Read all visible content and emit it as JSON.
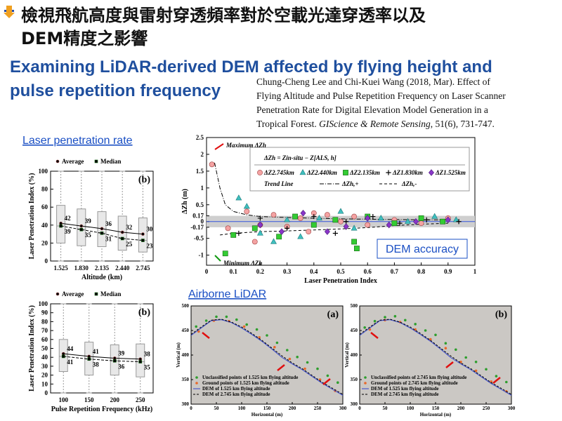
{
  "header": {
    "title_zh": [
      "檢視飛航高度與雷射穿透頻率對於空載光達穿透率以及",
      "DEM精度之影響"
    ],
    "title_en": [
      "Examining LiDAR-derived DEM affected by flying height and",
      "pulse repetition frequency"
    ]
  },
  "citation": {
    "lines": [
      "Chung-Cheng Lee and Chi-Kuei Wang (2018, Mar). Effect of",
      "Flying Altitude  and Pulse Repetition Frequency on Laser Scanner",
      "Penetration Rate for Digital  Elevation  Model Generation  in a"
    ],
    "last_line": [
      "Tropical Forest. ",
      "GIScience & Remote Sensing",
      ", 51(6), 731-747."
    ]
  },
  "labels": {
    "penetration": "Laser penetration rate",
    "accuracy": "DEM accuracy",
    "lidar": "Airborne LiDAR"
  },
  "chart_data": [
    {
      "type": "box",
      "panel": "(b)",
      "xlabel": "Altitude (km)",
      "ylabel": "Laser Penetration Index (%)",
      "categories": [
        "1.525",
        "1.830",
        "2.135",
        "2.440",
        "2.745"
      ],
      "ylim": [
        0,
        100
      ],
      "yticks": [
        0,
        20,
        40,
        60,
        80,
        100
      ],
      "boxes": {
        "min": [
          0,
          0,
          0,
          0,
          0
        ],
        "q1": [
          20,
          17,
          16,
          12,
          10
        ],
        "q3": [
          62,
          58,
          55,
          50,
          48
        ],
        "max": [
          100,
          100,
          100,
          100,
          100
        ]
      },
      "series": [
        {
          "name": "Average",
          "marker": "circle",
          "dashed": false,
          "color": "#000000",
          "values": [
            42,
            39,
            36,
            32,
            30
          ]
        },
        {
          "name": "Median",
          "marker": "square",
          "dashed": true,
          "color": "#000000",
          "values": [
            39,
            35,
            31,
            25,
            23
          ]
        }
      ]
    },
    {
      "type": "box",
      "panel": "(b)",
      "xlabel": "Pulse Repetition Frequency (kHz)",
      "ylabel": "Laser Penetration Index (%)",
      "categories": [
        "100",
        "150",
        "200",
        "250"
      ],
      "ylim": [
        0,
        100
      ],
      "yticks": [
        0,
        10,
        20,
        30,
        40,
        50,
        60,
        70,
        80,
        90,
        100
      ],
      "boxes": {
        "min": [
          0,
          0,
          0,
          0
        ],
        "q1": [
          24,
          20,
          20,
          18
        ],
        "q3": [
          60,
          57,
          54,
          55
        ],
        "max": [
          100,
          100,
          100,
          100
        ]
      },
      "series": [
        {
          "name": "Average",
          "marker": "circle",
          "dashed": false,
          "color": "#000000",
          "values": [
            44,
            41,
            39,
            38
          ]
        },
        {
          "name": "Median",
          "marker": "square",
          "dashed": true,
          "color": "#000000",
          "values": [
            41,
            38,
            36,
            35
          ]
        }
      ]
    },
    {
      "type": "scatter",
      "xlabel": "Laser Penetration Index",
      "ylabel": "ΔZh (m)",
      "formula": "ΔZh = Zin-situ − Z[ALS, h]",
      "trend_label": "Trend Line",
      "annotations": {
        "max": "Maximum ΔZh",
        "min": "Minimum ΔZh"
      },
      "xlim": [
        0,
        1
      ],
      "xticks": [
        0,
        0.1,
        0.2,
        0.3,
        0.4,
        0.5,
        0.6,
        0.7,
        0.8,
        0.9,
        1
      ],
      "ylim": [
        -1.3,
        2.5
      ],
      "yticks": [
        -1,
        -0.5,
        -0.17,
        0,
        0.17,
        0.5,
        1,
        1.5,
        2,
        2.5
      ],
      "band": [
        -0.17,
        0.17
      ],
      "series": [
        {
          "name": "ΔZ2.745km",
          "marker": "circle",
          "color": "#f4a3a3",
          "x": [
            0.02,
            0.08,
            0.15,
            0.2,
            0.25,
            0.3,
            0.35,
            0.38,
            0.45,
            0.5,
            0.55,
            0.6,
            0.7,
            0.8,
            0.9,
            0.18,
            0.4
          ],
          "y": [
            1.7,
            -0.2,
            0.3,
            -0.1,
            0.2,
            -0.15,
            0.1,
            -0.3,
            0.2,
            0.0,
            0.15,
            -0.1,
            0.05,
            -0.05,
            0.1,
            -0.6,
            0.25
          ]
        },
        {
          "name": "ΔZ2.440km",
          "marker": "triangle",
          "color": "#3fbfbf",
          "x": [
            0.12,
            0.15,
            0.2,
            0.25,
            0.3,
            0.35,
            0.42,
            0.5,
            0.55,
            0.65,
            0.75,
            0.85,
            0.93
          ],
          "y": [
            0.7,
            0.45,
            -0.35,
            -0.6,
            0.05,
            -0.45,
            0.1,
            0.3,
            -0.2,
            0.1,
            0.0,
            0.15,
            0.05
          ]
        },
        {
          "name": "ΔZ2.135km",
          "marker": "square",
          "color": "#33cc33",
          "x": [
            0.07,
            0.1,
            0.18,
            0.27,
            0.33,
            0.4,
            0.48,
            0.55,
            0.56,
            0.6,
            0.7,
            0.8,
            0.88
          ],
          "y": [
            -0.95,
            -0.4,
            -0.2,
            -0.45,
            0.15,
            -0.1,
            0.05,
            -0.6,
            -0.8,
            0.15,
            -0.05,
            0.1,
            0.0
          ]
        },
        {
          "name": "ΔZ1.830km",
          "marker": "plus",
          "color": "#000000",
          "x": [
            0.12,
            0.2,
            0.3,
            0.4,
            0.48,
            0.52,
            0.62,
            0.72,
            0.82,
            0.94
          ],
          "y": [
            -0.35,
            0.1,
            -0.2,
            0.15,
            -0.35,
            0.0,
            0.15,
            -0.05,
            0.05,
            0.0
          ]
        },
        {
          "name": "ΔZ1.525km",
          "marker": "diamond",
          "color": "#8a35c8",
          "x": [
            0.2,
            0.28,
            0.36,
            0.45,
            0.52,
            0.6,
            0.68,
            0.78,
            0.9
          ],
          "y": [
            -0.1,
            -0.3,
            0.25,
            -0.3,
            -0.15,
            0.1,
            -0.1,
            0.0,
            0.05
          ]
        }
      ],
      "trend_lines": [
        {
          "name": "ΔZh,+",
          "style": "dash-dot",
          "x": [
            0.03,
            0.05,
            0.07,
            0.1,
            0.15,
            0.2,
            0.3,
            0.4,
            0.5,
            0.6,
            0.7,
            0.8,
            0.9
          ],
          "y": [
            1.75,
            1.0,
            0.5,
            0.3,
            0.2,
            0.15,
            0.12,
            0.1,
            0.08,
            0.07,
            0.06,
            0.05,
            0.05
          ]
        },
        {
          "name": "ΔZh,-",
          "style": "dashed",
          "x": [
            0.05,
            0.1,
            0.2,
            0.3,
            0.4,
            0.5,
            0.6,
            0.7,
            0.8,
            0.9
          ],
          "y": [
            -0.4,
            -0.35,
            -0.3,
            -0.28,
            -0.25,
            -0.22,
            -0.18,
            -0.12,
            -0.08,
            -0.05
          ]
        }
      ]
    },
    {
      "type": "profile",
      "panel": "(a)",
      "xlabel": "Horizontal (m)",
      "ylabel": "Vertical (m)",
      "xlim": [
        0,
        300
      ],
      "xticks": [
        0,
        50,
        100,
        150,
        200,
        250,
        300
      ],
      "ylim": [
        300,
        500
      ],
      "yticks": [
        300,
        350,
        400,
        450,
        500
      ],
      "series": [
        {
          "name": "Unclassified points of 1.525 km flying altitude",
          "kind": "points",
          "color": "#2e9e2e",
          "x": [
            10,
            30,
            50,
            70,
            90,
            110,
            130,
            150,
            170,
            190,
            210,
            230,
            250,
            270,
            290
          ],
          "y": [
            458,
            470,
            478,
            478,
            472,
            462,
            452,
            440,
            425,
            410,
            396,
            385,
            372,
            358,
            344
          ]
        },
        {
          "name": "Ground points of 1.525 km flying altitude",
          "kind": "points",
          "color": "#e8692a",
          "x": [
            15,
            45,
            75,
            105,
            135,
            165,
            195,
            225,
            255,
            285
          ],
          "y": [
            448,
            470,
            469,
            458,
            436,
            416,
            392,
            372,
            350,
            327
          ]
        },
        {
          "name": "DEM of 1.525 km flying altitude",
          "kind": "line",
          "color": "#3344cc",
          "x": [
            0,
            20,
            40,
            60,
            80,
            100,
            120,
            140,
            160,
            180,
            200,
            220,
            240,
            260,
            280,
            300
          ],
          "y": [
            440,
            455,
            470,
            472,
            466,
            455,
            442,
            428,
            412,
            395,
            382,
            370,
            356,
            342,
            330,
            318
          ]
        },
        {
          "name": "DEM of 2.745 km flying altitude",
          "kind": "dashed",
          "color": "#000000",
          "x": [
            0,
            20,
            40,
            60,
            80,
            100,
            120,
            140,
            160,
            180,
            200,
            220,
            240,
            260,
            280,
            300
          ],
          "y": [
            442,
            457,
            471,
            473,
            467,
            457,
            444,
            430,
            414,
            398,
            384,
            372,
            358,
            344,
            332,
            320
          ]
        }
      ]
    },
    {
      "type": "profile",
      "panel": "(b)",
      "xlabel": "Horizontal (m)",
      "ylabel": "Vertical (m)",
      "xlim": [
        0,
        300
      ],
      "xticks": [
        0,
        50,
        100,
        150,
        200,
        250,
        300
      ],
      "ylim": [
        300,
        500
      ],
      "yticks": [
        300,
        350,
        400,
        450,
        500
      ],
      "series": [
        {
          "name": "Unclassified points of 2.745 km flying altitude",
          "kind": "points",
          "color": "#2e9e2e",
          "x": [
            10,
            30,
            50,
            70,
            90,
            110,
            130,
            150,
            170,
            190,
            210,
            230,
            250,
            270,
            290
          ],
          "y": [
            456,
            469,
            477,
            479,
            471,
            463,
            450,
            441,
            424,
            411,
            395,
            386,
            371,
            357,
            345
          ]
        },
        {
          "name": "Ground points of 2.745 km flying altitude",
          "kind": "points",
          "color": "#e8692a",
          "x": [
            20,
            50,
            80,
            110,
            140,
            170,
            200,
            230,
            260,
            290
          ],
          "y": [
            452,
            471,
            467,
            452,
            432,
            414,
            386,
            368,
            346,
            326
          ]
        },
        {
          "name": "DEM of 1.525 km flying altitude",
          "kind": "line",
          "color": "#3344cc",
          "x": [
            0,
            20,
            40,
            60,
            80,
            100,
            120,
            140,
            160,
            180,
            200,
            220,
            240,
            260,
            280,
            300
          ],
          "y": [
            440,
            455,
            470,
            472,
            466,
            455,
            442,
            428,
            412,
            395,
            382,
            370,
            356,
            342,
            330,
            318
          ]
        },
        {
          "name": "DEM of 2.745 km flying altitude",
          "kind": "dashed",
          "color": "#000000",
          "x": [
            0,
            20,
            40,
            60,
            80,
            100,
            120,
            140,
            160,
            180,
            200,
            220,
            240,
            260,
            280,
            300
          ],
          "y": [
            442,
            457,
            471,
            473,
            467,
            457,
            444,
            430,
            414,
            398,
            384,
            372,
            358,
            344,
            332,
            320
          ]
        }
      ]
    }
  ]
}
